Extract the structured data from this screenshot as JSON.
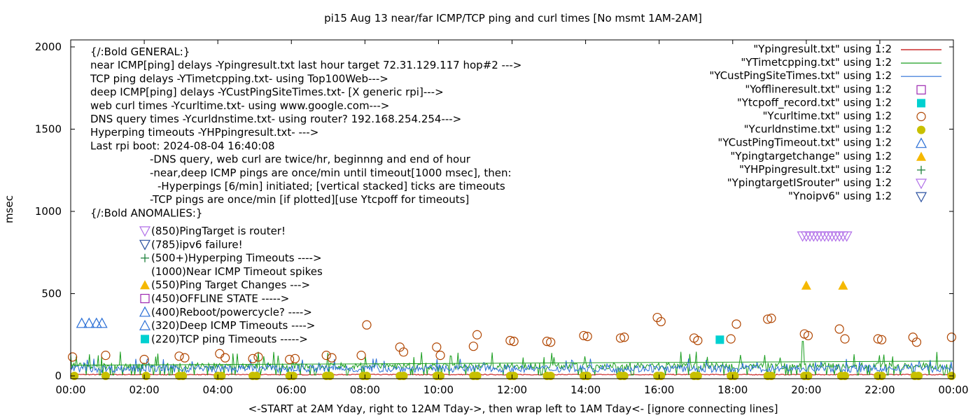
{
  "chart_data": {
    "type": "scatter",
    "title": "pi15 Aug 13  near/far ICMP/TCP ping and curl times [No msmt 1AM-2AM]",
    "xlabel": "<-START at 2AM Yday, right to 12AM Tday->, then wrap left to 1AM Tday<- [ignore connecting lines]",
    "ylabel": "msec",
    "xlim": [
      0,
      24
    ],
    "ylim": [
      0,
      2000
    ],
    "x_ticks": [
      "00:00",
      "02:00",
      "04:00",
      "06:00",
      "08:00",
      "10:00",
      "12:00",
      "14:00",
      "16:00",
      "18:00",
      "20:00",
      "22:00",
      "00:00"
    ],
    "y_ticks": [
      0,
      500,
      1000,
      1500,
      2000
    ],
    "y_tick_labels": [
      "0",
      "500",
      "1000",
      "1500",
      "2000"
    ],
    "grid": false,
    "legend_position": "top-right",
    "legend": [
      {
        "label": "\"Ypingresult.txt\" using 1:2",
        "marker": "line",
        "color": "#c00000"
      },
      {
        "label": "\"YTimetcpping.txt\" using 1:2",
        "marker": "line",
        "color": "#1b9e20"
      },
      {
        "label": "\"YCustPingSiteTimes.txt\" using 1:2",
        "marker": "line",
        "color": "#2a6fd6"
      },
      {
        "label": "\"Yofflineresult.txt\" using 1:2",
        "marker": "square-open",
        "color": "#9c27b0"
      },
      {
        "label": "\"Ytcpoff_record.txt\" using 1:2",
        "marker": "square-filled",
        "color": "#00d0d0"
      },
      {
        "label": "\"Ycurltime.txt\" using 1:2",
        "marker": "circle-open",
        "color": "#b04500"
      },
      {
        "label": "\"Ycurldnstime.txt\" using 1:2",
        "marker": "circle-filled",
        "color": "#c8c000"
      },
      {
        "label": "\"YCustPingTimeout.txt\" using 1:2",
        "marker": "triangle-up-open",
        "color": "#2a6fd6"
      },
      {
        "label": "\"Ypingtargetchange\" using 1:2",
        "marker": "triangle-up-filled",
        "color": "#f5b800"
      },
      {
        "label": "\"YHPpingresult.txt\" using 1:2",
        "marker": "plus",
        "color": "#1b7f3a"
      },
      {
        "label": "\"YpingtargetISrouter\" using 1:2",
        "marker": "triangle-down-open",
        "color": "#b06ee8"
      },
      {
        "label": "\"Ynoipv6\" using 1:2",
        "marker": "triangle-down-open",
        "color": "#2a50a0"
      }
    ],
    "annotations": [
      "{/:Bold GENERAL:}",
      "near ICMP[ping] delays -Ypingresult.txt last hour target 72.31.129.117 hop#2 --->",
      "TCP ping delays -YTimetcpping.txt- using Top100Web--->",
      "deep ICMP[ping] delays -YCustPingSiteTimes.txt- [X generic rpi]--->",
      "web curl times -Ycurltime.txt- using www.google.com--->",
      "DNS query times -Ycurldnstime.txt- using router? 192.168.254.254--->",
      "Hyperping timeouts -YHPpingresult.txt- --->",
      "Last rpi boot: 2024-08-04 16:40:08",
      "-DNS query, web curl are twice/hr, beginnng and end of hour",
      "-near,deep ICMP pings are once/min until timeout[1000 msec], then:",
      "-Hyperpings [6/min] initiated; [vertical stacked] ticks are timeouts",
      "-TCP pings are once/min [if plotted][use Ytcpoff for timeouts]",
      "{/:Bold ANOMALIES:}"
    ],
    "anomaly_key": [
      {
        "marker": "triangle-down-open",
        "color": "#b06ee8",
        "text": "(850)PingTarget is router!"
      },
      {
        "marker": "triangle-down-open",
        "color": "#2a50a0",
        "text": "(785)ipv6 failure!"
      },
      {
        "marker": "plus",
        "color": "#1b7f3a",
        "text": "(500+)Hyperping Timeouts ---->"
      },
      {
        "marker": "none",
        "color": "#000000",
        "text": "(1000)Near ICMP Timeout spikes"
      },
      {
        "marker": "triangle-up-filled",
        "color": "#f5b800",
        "text": "(550)Ping Target Changes --->"
      },
      {
        "marker": "square-open",
        "color": "#9c27b0",
        "text": "(450)OFFLINE STATE ----->"
      },
      {
        "marker": "triangle-up-open",
        "color": "#2a6fd6",
        "text": "(400)Reboot/powercycle? ---->"
      },
      {
        "marker": "triangle-up-open",
        "color": "#2a6fd6",
        "text": "(320)Deep ICMP Timeouts ---->"
      },
      {
        "marker": "square-filled",
        "color": "#00d0d0",
        "text": "(220)TCP ping Timeouts ----->"
      }
    ],
    "series": [
      {
        "name": "\"Ycurltime.txt\" using 1:2",
        "marker": "circle-open",
        "color": "#b04500",
        "points": [
          [
            0.05,
            115
          ],
          [
            0.95,
            125
          ],
          [
            2.0,
            100
          ],
          [
            2.95,
            120
          ],
          [
            3.1,
            110
          ],
          [
            4.05,
            135
          ],
          [
            4.2,
            110
          ],
          [
            4.95,
            105
          ],
          [
            5.1,
            115
          ],
          [
            5.95,
            100
          ],
          [
            6.1,
            105
          ],
          [
            6.95,
            125
          ],
          [
            7.1,
            110
          ],
          [
            7.9,
            125
          ],
          [
            8.05,
            310
          ],
          [
            8.95,
            175
          ],
          [
            9.05,
            145
          ],
          [
            9.95,
            175
          ],
          [
            10.05,
            125
          ],
          [
            10.95,
            180
          ],
          [
            11.05,
            250
          ],
          [
            11.95,
            215
          ],
          [
            12.05,
            210
          ],
          [
            12.95,
            210
          ],
          [
            13.05,
            205
          ],
          [
            13.95,
            245
          ],
          [
            14.05,
            240
          ],
          [
            14.95,
            230
          ],
          [
            15.05,
            235
          ],
          [
            15.95,
            355
          ],
          [
            16.05,
            330
          ],
          [
            16.95,
            230
          ],
          [
            17.05,
            215
          ],
          [
            17.95,
            225
          ],
          [
            18.1,
            315
          ],
          [
            18.95,
            345
          ],
          [
            19.05,
            350
          ],
          [
            19.95,
            255
          ],
          [
            20.05,
            245
          ],
          [
            20.9,
            285
          ],
          [
            21.05,
            225
          ],
          [
            21.95,
            225
          ],
          [
            22.05,
            220
          ],
          [
            22.9,
            235
          ],
          [
            23.0,
            205
          ],
          [
            23.95,
            235
          ]
        ]
      },
      {
        "name": "\"Ycurldnstime.txt\" using 1:2",
        "marker": "circle-filled",
        "color": "#c8c000",
        "points": [
          [
            0.1,
            0
          ],
          [
            0.95,
            0
          ],
          [
            2.05,
            0
          ],
          [
            2.95,
            0
          ],
          [
            3.05,
            0
          ],
          [
            4.0,
            0
          ],
          [
            4.1,
            0
          ],
          [
            4.95,
            0
          ],
          [
            5.05,
            0
          ],
          [
            5.95,
            0
          ],
          [
            6.05,
            0
          ],
          [
            6.95,
            0
          ],
          [
            7.05,
            0
          ],
          [
            7.95,
            0
          ],
          [
            8.05,
            0
          ],
          [
            8.95,
            0
          ],
          [
            9.05,
            0
          ],
          [
            9.95,
            0
          ],
          [
            10.05,
            0
          ],
          [
            10.95,
            0
          ],
          [
            11.05,
            0
          ],
          [
            11.95,
            0
          ],
          [
            12.05,
            0
          ],
          [
            12.95,
            0
          ],
          [
            13.05,
            0
          ],
          [
            13.95,
            0
          ],
          [
            14.05,
            0
          ],
          [
            14.95,
            0
          ],
          [
            15.05,
            0
          ],
          [
            15.95,
            0
          ],
          [
            16.05,
            0
          ],
          [
            16.95,
            0
          ],
          [
            17.05,
            0
          ],
          [
            17.95,
            0
          ],
          [
            18.05,
            0
          ],
          [
            18.95,
            0
          ],
          [
            19.05,
            0
          ],
          [
            19.95,
            0
          ],
          [
            20.05,
            0
          ],
          [
            20.95,
            0
          ],
          [
            21.05,
            0
          ],
          [
            21.95,
            0
          ],
          [
            22.05,
            0
          ],
          [
            22.95,
            0
          ],
          [
            23.05,
            0
          ],
          [
            23.95,
            0
          ]
        ]
      },
      {
        "name": "\"YCustPingTimeout.txt\" using 1:2",
        "marker": "triangle-up-open",
        "color": "#2a6fd6",
        "points": [
          [
            0.3,
            320
          ],
          [
            0.5,
            320
          ],
          [
            0.7,
            320
          ],
          [
            0.85,
            320
          ]
        ]
      },
      {
        "name": "\"Ypingtargetchange\" using 1:2",
        "marker": "triangle-up-filled",
        "color": "#f5b800",
        "points": [
          [
            20.0,
            550
          ],
          [
            21.0,
            550
          ]
        ]
      },
      {
        "name": "\"YpingtargetISrouter\" using 1:2",
        "marker": "triangle-down-open",
        "color": "#b06ee8",
        "points": [
          [
            19.9,
            850
          ],
          [
            20.0,
            850
          ],
          [
            20.1,
            850
          ],
          [
            20.2,
            850
          ],
          [
            20.3,
            850
          ],
          [
            20.4,
            850
          ],
          [
            20.5,
            850
          ],
          [
            20.6,
            850
          ],
          [
            20.7,
            850
          ],
          [
            20.8,
            850
          ],
          [
            20.9,
            850
          ],
          [
            21.0,
            850
          ],
          [
            21.1,
            850
          ]
        ]
      },
      {
        "name": "\"Ytcpoff_record.txt\" using 1:2",
        "marker": "square-filled",
        "color": "#00d0d0",
        "points": [
          [
            17.65,
            220
          ]
        ]
      }
    ],
    "line_series": [
      {
        "name": "\"Ypingresult.txt\" using 1:2",
        "color": "#c00000",
        "approx_level": 5
      },
      {
        "name": "\"YTimetcpping.txt\" using 1:2",
        "color": "#1b9e20",
        "approx_level": 60
      },
      {
        "name": "\"YCustPingSiteTimes.txt\" using 1:2",
        "color": "#2a6fd6",
        "approx_level": 35
      }
    ]
  }
}
